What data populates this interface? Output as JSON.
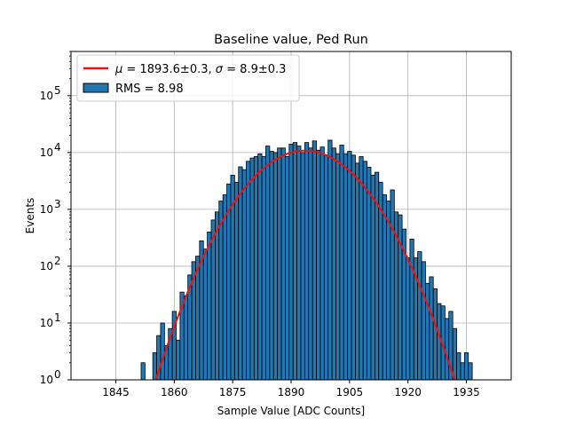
{
  "chart_data": {
    "type": "bar",
    "title": "Baseline value, Ped Run",
    "xlabel": "Sample Value [ADC Counts]",
    "ylabel": "Events",
    "xlim": [
      1833.5,
      1946.5
    ],
    "ylim": [
      1,
      600000
    ],
    "yscale": "log",
    "grid": true,
    "legend_position": "top-left",
    "x_ticks": [
      1845,
      1860,
      1875,
      1890,
      1905,
      1920,
      1935
    ],
    "x_tick_labels": [
      "1845",
      "1860",
      "1875",
      "1890",
      "1905",
      "1920",
      "1935"
    ],
    "y_ticks": [
      1,
      10,
      100,
      1000,
      10000,
      100000
    ],
    "y_tick_exponents": [
      "0",
      "1",
      "2",
      "3",
      "4",
      "5"
    ],
    "y_tick_base": "10",
    "bin_width": 1,
    "bins": {
      "x": [
        1839,
        1852,
        1854,
        1855,
        1856,
        1857,
        1858,
        1859,
        1860,
        1861,
        1862,
        1863,
        1864,
        1865,
        1866,
        1867,
        1868,
        1869,
        1870,
        1871,
        1872,
        1873,
        1874,
        1875,
        1876,
        1877,
        1878,
        1879,
        1880,
        1881,
        1882,
        1883,
        1884,
        1885,
        1886,
        1887,
        1888,
        1889,
        1890,
        1891,
        1892,
        1893,
        1894,
        1895,
        1896,
        1897,
        1898,
        1899,
        1900,
        1901,
        1902,
        1903,
        1904,
        1905,
        1906,
        1907,
        1908,
        1909,
        1910,
        1911,
        1912,
        1913,
        1914,
        1915,
        1916,
        1917,
        1918,
        1919,
        1920,
        1921,
        1922,
        1923,
        1924,
        1925,
        1926,
        1927,
        1928,
        1929,
        1930,
        1931,
        1932,
        1933,
        1934,
        1935,
        1936,
        1937
      ],
      "counts": [
        1,
        2,
        1,
        3,
        6,
        10,
        4,
        8,
        16,
        5,
        35,
        30,
        70,
        120,
        150,
        280,
        200,
        400,
        650,
        900,
        1400,
        1800,
        2800,
        4000,
        3000,
        5600,
        5000,
        7000,
        8000,
        8500,
        9500,
        8500,
        13000,
        10500,
        10000,
        12000,
        12000,
        8500,
        14000,
        15000,
        13000,
        10000,
        15000,
        12000,
        16000,
        11000,
        12500,
        9000,
        16500,
        12000,
        9500,
        13500,
        9500,
        10500,
        9000,
        6500,
        8500,
        7000,
        5500,
        4000,
        4500,
        3000,
        1800,
        1400,
        2200,
        900,
        800,
        450,
        140,
        300,
        140,
        180,
        120,
        50,
        65,
        40,
        22,
        20,
        12,
        16,
        8,
        3,
        2,
        3,
        2,
        1
      ]
    },
    "fit": {
      "type": "gaussian",
      "mu": 1893.6,
      "sigma": 8.9,
      "amplitude": 10800
    },
    "legend": [
      {
        "label_prefix": "μ",
        "label_mid": " = 1893.6±0.3, ",
        "label_sigma": "σ",
        "label_suffix": " = 8.9±0.3",
        "type": "line",
        "color": "#ee1111"
      },
      {
        "label": "RMS = 8.98",
        "type": "patch",
        "color": "#1f77b4"
      }
    ],
    "colors": {
      "bar_fill": "#1f77b4",
      "bar_edge": "#000000",
      "fit_line": "#ee1111",
      "grid": "#b0b0b0"
    }
  }
}
